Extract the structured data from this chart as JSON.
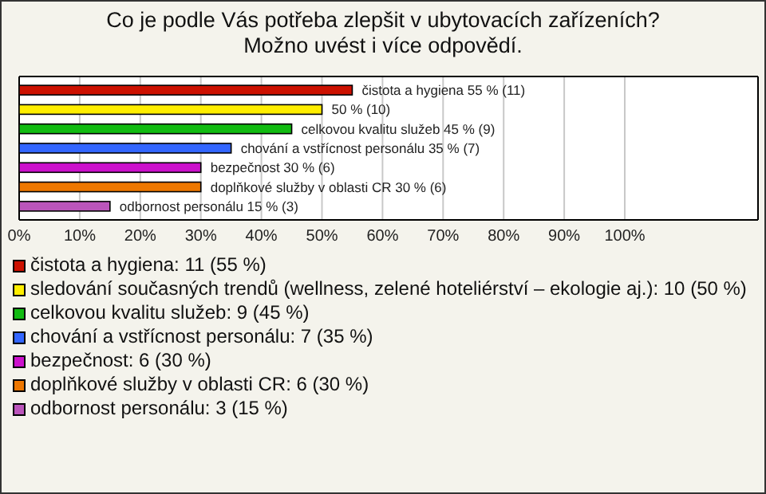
{
  "chart_data": {
    "type": "bar",
    "orientation": "horizontal",
    "title": "Co je podle Vás potřeba zlepšit v ubytovacích zařízeních? Možno uvést i více odpovědí.",
    "categories": [
      null,
      null,
      null,
      null,
      null,
      null,
      null
    ],
    "series": [
      {
        "name": "čistota a hygiena: 11 (55 %)",
        "color": "#cc1100",
        "values": [
          55,
          null,
          null,
          null,
          null,
          null,
          null
        ],
        "value_labels": [
          "čistota a hygiena 55 % (11)",
          null,
          null,
          null,
          null,
          null,
          null
        ]
      },
      {
        "name": "sledování současných trendů (wellness, zelené hoteliérství – ekologie aj.): 10 (50 %)",
        "color": "#ffee00",
        "values": [
          null,
          50,
          null,
          null,
          null,
          null,
          null
        ],
        "value_labels": [
          null,
          "50 % (10)",
          null,
          null,
          null,
          null,
          null
        ]
      },
      {
        "name": "celkovou kvalitu služeb: 9 (45 %)",
        "color": "#11bb11",
        "values": [
          null,
          null,
          45,
          null,
          null,
          null,
          null
        ],
        "value_labels": [
          null,
          null,
          "celkovou kvalitu služeb 45 % (9)",
          null,
          null,
          null,
          null
        ]
      },
      {
        "name": "chování a vstřícnost personálu: 7 (35 %)",
        "color": "#3366ff",
        "values": [
          null,
          null,
          null,
          35,
          null,
          null,
          null
        ],
        "value_labels": [
          null,
          null,
          null,
          "chování a vstřícnost personálu 35 % (7)",
          null,
          null,
          null
        ]
      },
      {
        "name": "bezpečnost: 6 (30 %)",
        "color": "#cc11cc",
        "values": [
          null,
          null,
          null,
          null,
          30,
          null,
          null
        ],
        "value_labels": [
          null,
          null,
          null,
          null,
          "bezpečnost 30 % (6)",
          null,
          null
        ]
      },
      {
        "name": "doplňkové služby v oblasti CR: 6 (30 %)",
        "color": "#ee7700",
        "values": [
          null,
          null,
          null,
          null,
          null,
          30,
          null
        ],
        "value_labels": [
          null,
          null,
          null,
          null,
          null,
          "doplňkové služby v oblasti CR 30 % (6)",
          null
        ]
      },
      {
        "name": "odbornost personálu: 3 (15 %)",
        "color": "#bb55bb",
        "values": [
          null,
          null,
          null,
          null,
          null,
          null,
          15
        ],
        "value_labels": [
          null,
          null,
          null,
          null,
          null,
          null,
          "odbornost personálu 15 % (3)"
        ]
      }
    ],
    "xlim": [
      0,
      122
    ],
    "xticks": [
      {
        "value": 0,
        "label": "0%"
      },
      {
        "value": 10,
        "label": "10%"
      },
      {
        "value": 20,
        "label": "20%"
      },
      {
        "value": 30,
        "label": "30%"
      },
      {
        "value": 40,
        "label": "40%"
      },
      {
        "value": 50,
        "label": "50%"
      },
      {
        "value": 60,
        "label": "60%"
      },
      {
        "value": 70,
        "label": "70%"
      },
      {
        "value": 80,
        "label": "80%"
      },
      {
        "value": 90,
        "label": "90%"
      },
      {
        "value": 100,
        "label": "100%"
      }
    ],
    "grid": "x",
    "legend": "bottom",
    "tick_labels": "x"
  }
}
